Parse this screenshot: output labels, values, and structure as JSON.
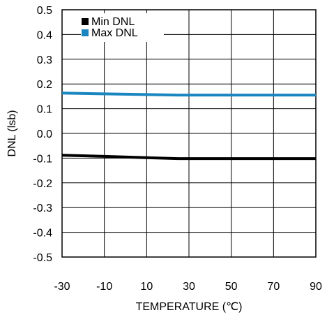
{
  "chart_data": {
    "type": "line",
    "xlabel": "TEMPERATURE (℃)",
    "ylabel": "DNL (lsb)",
    "xlim": [
      -30,
      90
    ],
    "ylim": [
      -0.5,
      0.5
    ],
    "x_ticks": [
      -30,
      -10,
      10,
      30,
      50,
      70,
      90
    ],
    "x_tick_labels": [
      "-30",
      "-10",
      "10",
      "30",
      "50",
      "70",
      "90"
    ],
    "y_ticks": [
      0.5,
      0.4,
      0.3,
      0.2,
      0.1,
      0.0,
      -0.1,
      -0.2,
      -0.3,
      -0.4,
      -0.5
    ],
    "y_tick_labels": [
      "0.5",
      "0.4",
      "0.3",
      "0.2",
      "0.1",
      "0.0",
      "-0.1",
      "-0.2",
      "-0.3",
      "-0.4",
      "-0.5"
    ],
    "grid": true,
    "legend_position": "top-left",
    "series": [
      {
        "name": "Min DNL",
        "color": "#000000",
        "x": [
          -30,
          -10,
          10,
          25,
          50,
          70,
          90
        ],
        "y": [
          -0.088,
          -0.093,
          -0.098,
          -0.102,
          -0.102,
          -0.102,
          -0.102
        ]
      },
      {
        "name": "Max DNL",
        "color": "#1a86c0",
        "x": [
          -30,
          -10,
          10,
          25,
          50,
          70,
          90
        ],
        "y": [
          0.163,
          0.16,
          0.157,
          0.155,
          0.155,
          0.155,
          0.155
        ]
      }
    ]
  }
}
